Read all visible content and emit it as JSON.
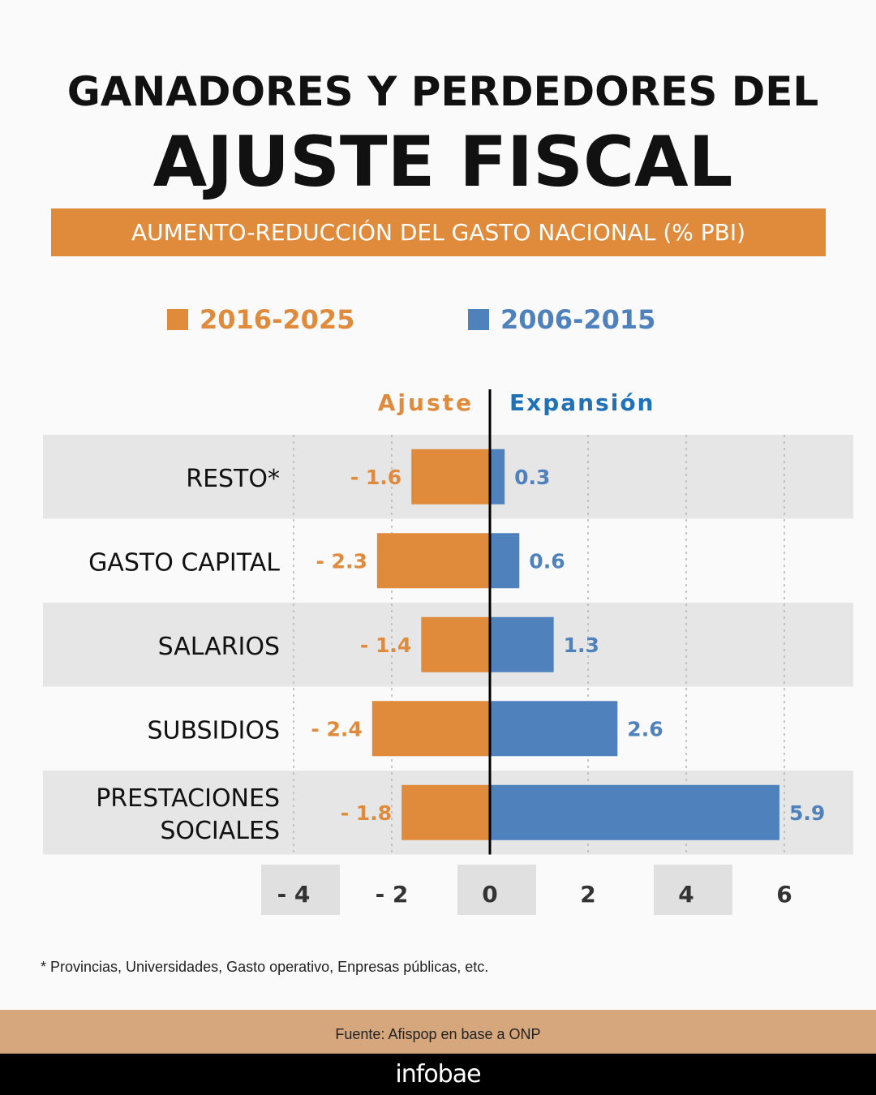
{
  "header": {
    "title_line1": "GANADORES Y PERDEDORES DEL",
    "title_line2": "AJUSTE FISCAL",
    "subtitle": "AUMENTO-REDUCCIÓN DEL GASTO NACIONAL (% PBI)"
  },
  "colors": {
    "orange": "#e08b3c",
    "blue": "#4f81bd",
    "blue_text": "#1f72b8",
    "band": "#e6e6e6",
    "axis": "#000000"
  },
  "chart_data": {
    "type": "bar",
    "orientation": "horizontal",
    "title": "GANADORES Y PERDEDORES DEL AJUSTE FISCAL",
    "subtitle": "AUMENTO-REDUCCIÓN DEL GASTO NACIONAL (% PBI)",
    "categories": [
      [
        "RESTO*"
      ],
      [
        "GASTO CAPITAL"
      ],
      [
        "SALARIOS"
      ],
      [
        "SUBSIDIOS"
      ],
      [
        "PRESTACIONES",
        "SOCIALES"
      ]
    ],
    "series": [
      {
        "name": "2016-2025",
        "color": "#e08b3c",
        "values": [
          -1.6,
          -2.3,
          -1.4,
          -2.4,
          -1.8
        ],
        "labels": [
          "- 1.6",
          "- 2.3",
          "- 1.4",
          "- 2.4",
          "- 1.8"
        ]
      },
      {
        "name": "2006-2015",
        "color": "#4f81bd",
        "values": [
          0.3,
          0.6,
          1.3,
          2.6,
          5.9
        ],
        "labels": [
          "0.3",
          "0.6",
          "1.3",
          "2.6",
          "5.9"
        ]
      }
    ],
    "xlim": [
      -4,
      6
    ],
    "xticks": [
      -4,
      -2,
      0,
      2,
      4,
      6
    ],
    "xtick_labels": [
      "- 4",
      "- 2",
      "0",
      "2",
      "4",
      "6"
    ],
    "side_labels": {
      "left": "Ajuste",
      "right": "Expansión"
    },
    "grid": true,
    "legend_position": "top"
  },
  "footnote": "*  Provincias, Universidades, Gasto operativo, Enpresas públicas, etc.",
  "source": "Fuente: Afispop en base a ONP",
  "brand": "infobae"
}
